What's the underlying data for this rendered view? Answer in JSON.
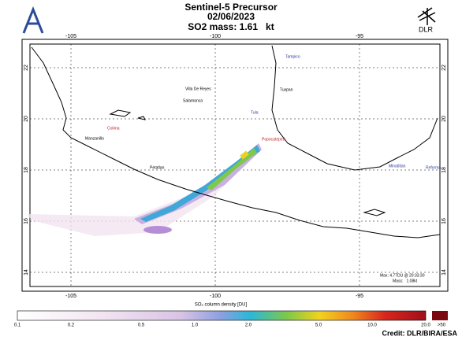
{
  "header": {
    "title": "Sentinel-5 Precursor",
    "date": "02/06/2023",
    "mass": "SO2 mass: 1.61   kt",
    "logo": "DLR"
  },
  "map": {
    "lon_ticks": [
      -105,
      -100,
      -95
    ],
    "lat_ticks": [
      22,
      20,
      18,
      16,
      14
    ],
    "places": [
      "Villa De Reyes",
      "Tampico",
      "Salamanca",
      "Tuxpan",
      "Tula",
      "Colima",
      "Manzanillo",
      "Popocatepetl",
      "Petatlan",
      "Minatitlan",
      "Reforma"
    ],
    "annotation": [
      "Max: 4.77DU @ 20:33:30",
      "Mass:   1.08kt"
    ]
  },
  "colorbar": {
    "title": "SO₂ column density [DU]",
    "ticks": [
      "0.1",
      "0.2",
      "0.5",
      "1.0",
      "2.0",
      "5.0",
      "10.0",
      "20.0",
      ">50"
    ]
  },
  "credit": "Credit: DLR/BIRA/ESA"
}
